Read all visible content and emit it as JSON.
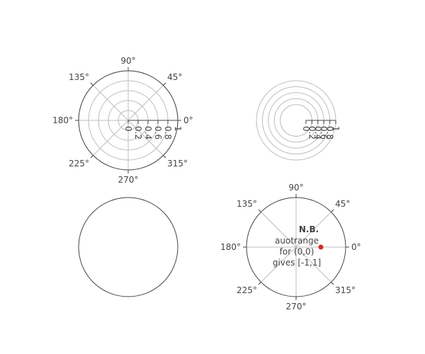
{
  "chart_data": [
    {
      "type": "polar",
      "radial_axis": {
        "visible": true,
        "showline": true,
        "range": [
          0,
          1
        ],
        "tick_labels": [
          "0",
          "0.2",
          "0.4",
          "0.6",
          "0.8",
          "1"
        ]
      },
      "angular_axis": {
        "visible": true,
        "tick_labels": [
          "0°",
          "45°",
          "90°",
          "135°",
          "180°",
          "225°",
          "270°",
          "315°"
        ]
      },
      "grid": true,
      "traces": []
    },
    {
      "type": "polar",
      "radial_axis": {
        "visible": true,
        "showline": true,
        "range": [
          0,
          1
        ],
        "tick_labels": [
          "0",
          "0.2",
          "0.4",
          "0.6",
          "0.8",
          "1"
        ]
      },
      "angular_axis": {
        "visible": false,
        "tick_labels": []
      },
      "grid": true,
      "traces": []
    },
    {
      "type": "polar",
      "radial_axis": {
        "visible": false,
        "tick_labels": []
      },
      "angular_axis": {
        "visible": false,
        "tick_labels": []
      },
      "grid": false,
      "traces": []
    },
    {
      "type": "polar",
      "radial_axis": {
        "visible": false,
        "range": [
          -1,
          1
        ],
        "tick_labels": []
      },
      "angular_axis": {
        "visible": true,
        "tick_labels": [
          "0°",
          "45°",
          "90°",
          "135°",
          "180°",
          "225°",
          "270°",
          "315°"
        ]
      },
      "grid": true,
      "traces": [
        {
          "r": [
            0
          ],
          "theta": [
            0
          ],
          "mode": "markers",
          "color": "#d62728"
        }
      ],
      "annotation": {
        "title": "N.B.",
        "lines": [
          "auotrange",
          "for (0,0)",
          "gives [-1,1]"
        ]
      }
    }
  ]
}
